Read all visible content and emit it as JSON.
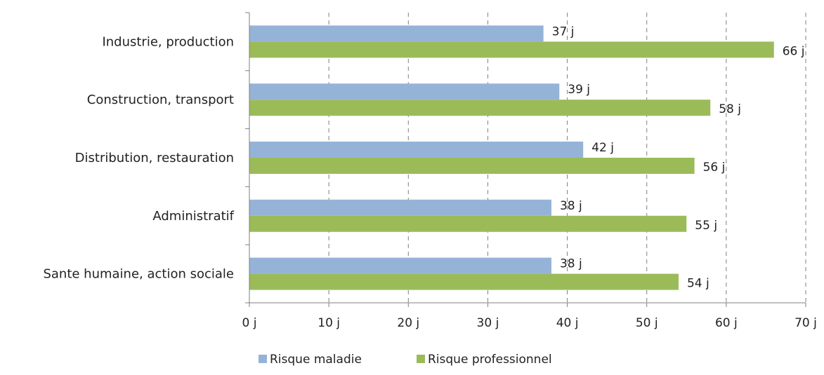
{
  "chart_data": {
    "type": "bar",
    "orientation": "horizontal",
    "categories": [
      "Industrie, production",
      "Construction, transport",
      "Distribution, restauration",
      "Administratif",
      "Sante humaine, action sociale"
    ],
    "series": [
      {
        "name": "Risque maladie",
        "values": [
          37,
          39,
          42,
          38,
          38
        ],
        "labels": [
          "37 j",
          "39 j",
          "42 j",
          "38 j",
          "38 j"
        ],
        "color": "#95b3d7"
      },
      {
        "name": "Risque professionnel",
        "values": [
          66,
          58,
          56,
          55,
          54
        ],
        "labels": [
          "66 j",
          "58 j",
          "56 j",
          "55 j",
          "54 j"
        ],
        "color": "#9bbb59"
      }
    ],
    "xlim": [
      0,
      70
    ],
    "xticks": [
      0,
      10,
      20,
      30,
      40,
      50,
      60,
      70
    ],
    "xtick_labels": [
      "0 j",
      "10 j",
      "20 j",
      "30 j",
      "40 j",
      "50 j",
      "60 j",
      "70 j"
    ],
    "grid": "vertical dashed",
    "legend_position": "bottom",
    "title": "",
    "xlabel": "",
    "ylabel": ""
  }
}
